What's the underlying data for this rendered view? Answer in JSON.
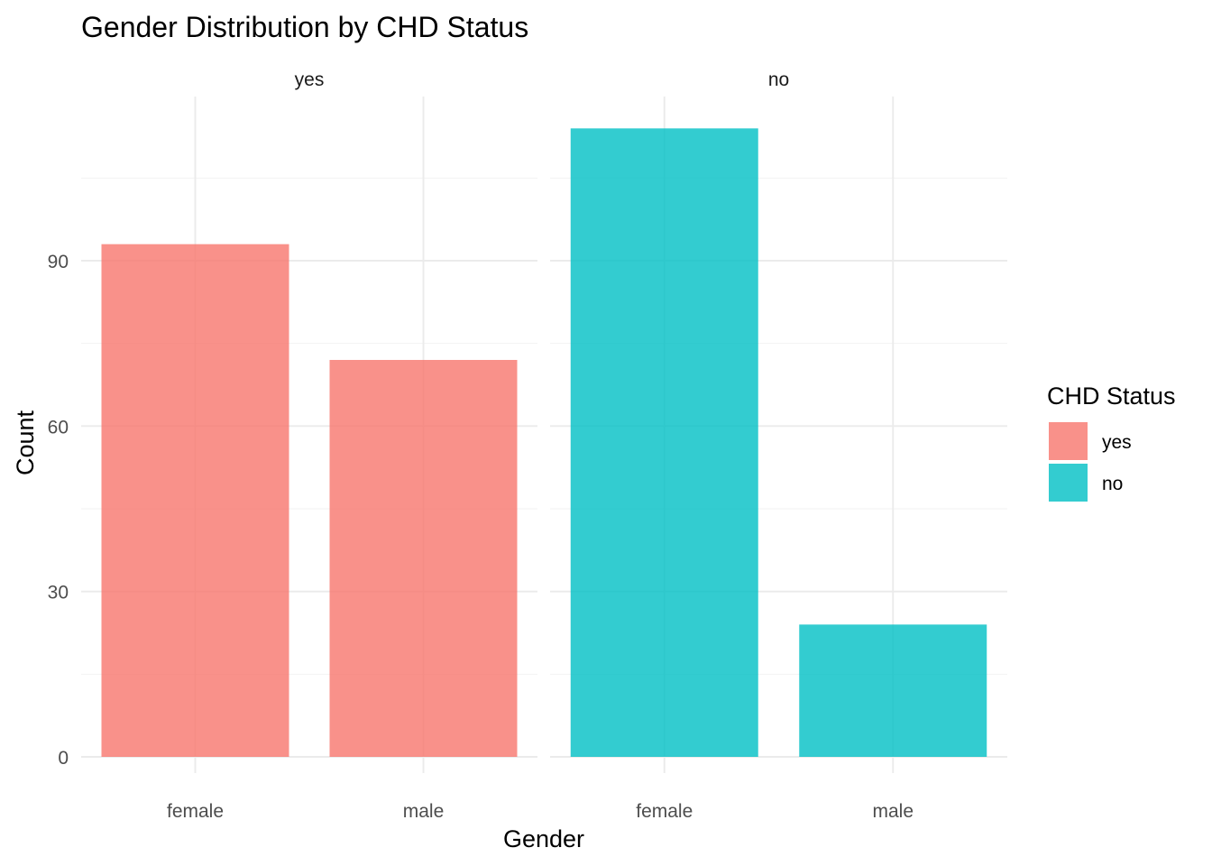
{
  "chart_data": {
    "type": "bar",
    "title": "Gender Distribution by CHD Status",
    "xlabel": "Gender",
    "ylabel": "Count",
    "ylim": [
      0,
      122
    ],
    "yticks": [
      0,
      30,
      60,
      90
    ],
    "grid": true,
    "legend": {
      "title": "CHD Status",
      "placement": "right",
      "entries": [
        {
          "label": "yes",
          "color": "#F8766D"
        },
        {
          "label": "no",
          "color": "#00BFC4"
        }
      ]
    },
    "categories": [
      "female",
      "male"
    ],
    "facets": [
      {
        "label": "yes",
        "color": "#F8766D",
        "values": [
          93,
          72
        ]
      },
      {
        "label": "no",
        "color": "#00BFC4",
        "values": [
          114,
          24
        ]
      }
    ]
  }
}
